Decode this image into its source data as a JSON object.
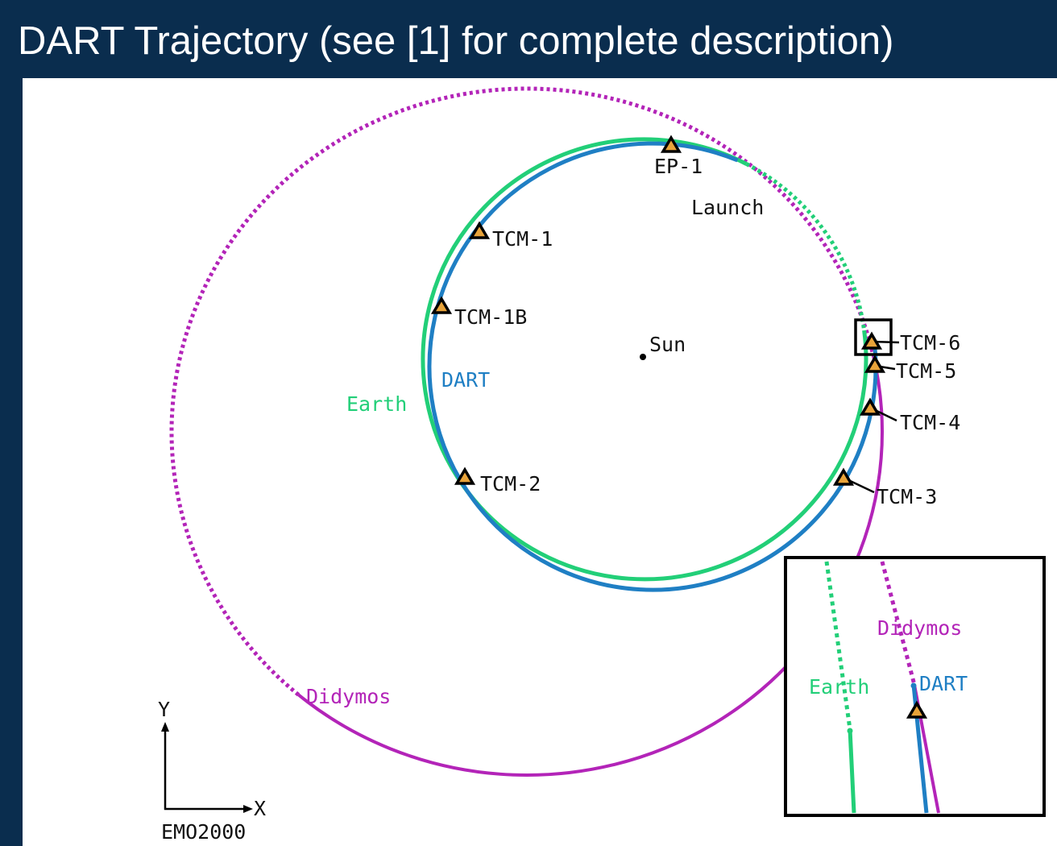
{
  "title": "DART Trajectory (see [1] for complete description)",
  "maneuvers": [
    "EP-1",
    "TCM-1",
    "TCM-1B",
    "TCM-2",
    "TCM-3",
    "TCM-4",
    "TCM-5",
    "TCM-6"
  ],
  "bodies": {
    "launch": "Launch",
    "sun": "Sun",
    "dart": "DART",
    "earth": "Earth",
    "didymos": "Didymos"
  },
  "axes": {
    "y": "Y",
    "x": "X",
    "frame": "EMO2000"
  },
  "inset": {
    "didymos": "Didymos",
    "earth": "Earth",
    "dart": "DART"
  }
}
